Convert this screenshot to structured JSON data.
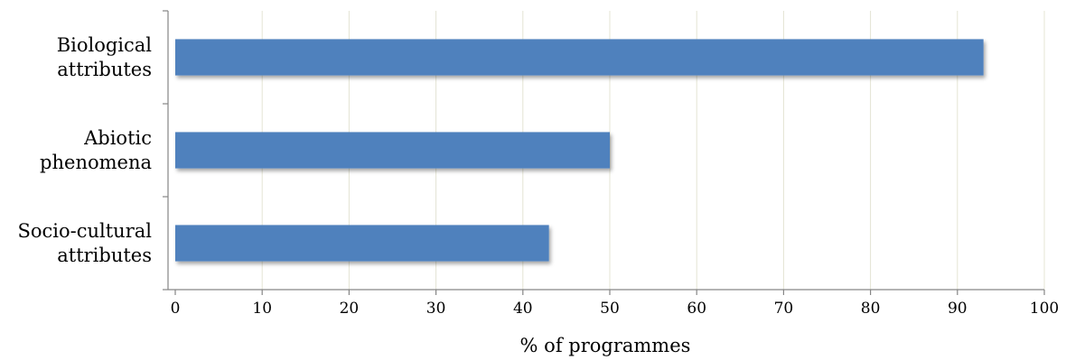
{
  "chart_data": {
    "type": "bar",
    "orientation": "horizontal",
    "categories": [
      [
        "Biological",
        "attributes"
      ],
      [
        "Abiotic",
        "phenomena"
      ],
      [
        "Socio-cultural",
        "attributes"
      ]
    ],
    "values": [
      93,
      50,
      43
    ],
    "xlabel": "% of programmes",
    "ylabel": "",
    "title": "",
    "xlim": [
      0,
      100
    ],
    "xticks": [
      0,
      10,
      20,
      30,
      40,
      50,
      60,
      70,
      80,
      90,
      100
    ],
    "grid": "vertical",
    "legend": "none",
    "bar_color": "#4f81bd",
    "bar_shadow": true
  }
}
